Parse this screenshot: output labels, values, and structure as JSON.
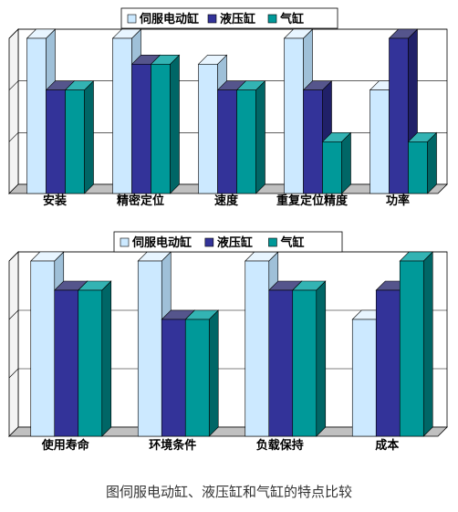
{
  "colors": {
    "series": [
      "#cce9ff",
      "#333399",
      "#009999"
    ],
    "top_shade": [
      "#e8f5ff",
      "#55558c",
      "#33b3b3"
    ],
    "side_shade": [
      "#9fc0d8",
      "#202068",
      "#006666"
    ],
    "grid": "#000000",
    "wall": "#ffffff",
    "floor": "#c0c0c0"
  },
  "chart_data": [
    {
      "type": "bar",
      "categories": [
        "安装",
        "精密定位",
        "速度",
        "重复定位精度",
        "功率"
      ],
      "series": [
        {
          "name": "伺服电动缸",
          "values": [
            3,
            3,
            2.5,
            3,
            2
          ]
        },
        {
          "name": "液压缸",
          "values": [
            2,
            2.5,
            2,
            2,
            3
          ]
        },
        {
          "name": "气缸",
          "values": [
            2,
            2.5,
            2,
            1,
            1
          ]
        }
      ],
      "ylim": [
        0,
        3
      ],
      "grid": true,
      "legend_position": "top",
      "title": "",
      "xlabel": "",
      "ylabel": ""
    },
    {
      "type": "bar",
      "categories": [
        "使用寿命",
        "环境条件",
        "负载保持",
        "成本"
      ],
      "series": [
        {
          "name": "伺服电动缸",
          "values": [
            3,
            3,
            3,
            2
          ]
        },
        {
          "name": "液压缸",
          "values": [
            2.5,
            2,
            2.5,
            2.5
          ]
        },
        {
          "name": "气缸",
          "values": [
            2.5,
            2,
            2.5,
            3
          ]
        }
      ],
      "ylim": [
        0,
        3
      ],
      "grid": true,
      "legend_position": "top",
      "title": "",
      "xlabel": "",
      "ylabel": ""
    }
  ],
  "caption": "图伺服电动缸、液压缸和气缸的特点比较"
}
